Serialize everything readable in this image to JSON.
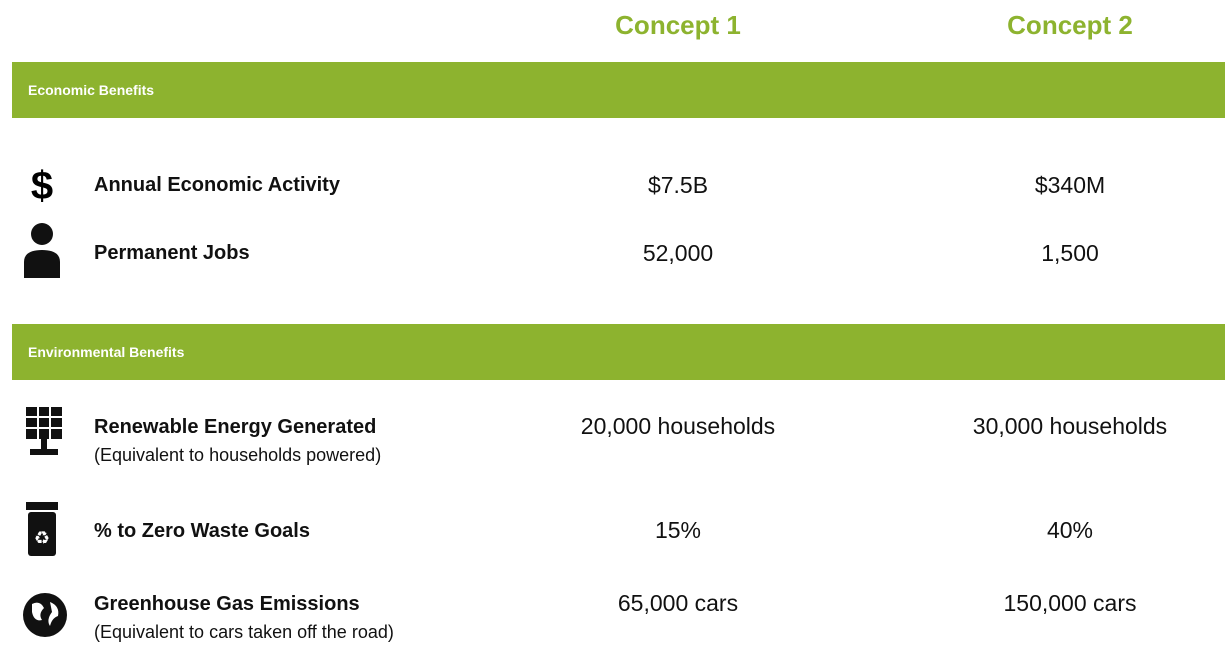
{
  "columns": [
    "Concept 1",
    "Concept 2"
  ],
  "sections": [
    {
      "title": "Economic Benefits",
      "rows": [
        {
          "label": "Annual Economic Activity",
          "values": [
            "$7.5B",
            "$340M"
          ]
        },
        {
          "label": "Permanent Jobs",
          "values": [
            "52,000",
            "1,500"
          ]
        }
      ]
    },
    {
      "title": "Environmental Benefits",
      "rows": [
        {
          "label": "Renewable Energy Generated",
          "note": "(Equivalent to households powered)",
          "values": [
            "20,000 households",
            "30,000 households"
          ]
        },
        {
          "label": "% to Zero Waste Goals",
          "values": [
            "15%",
            "40%"
          ]
        },
        {
          "label": "Greenhouse Gas Emissions",
          "note": "(Equivalent to cars taken off the road)",
          "values": [
            "65,000 cars",
            "150,000 cars"
          ]
        }
      ]
    }
  ]
}
